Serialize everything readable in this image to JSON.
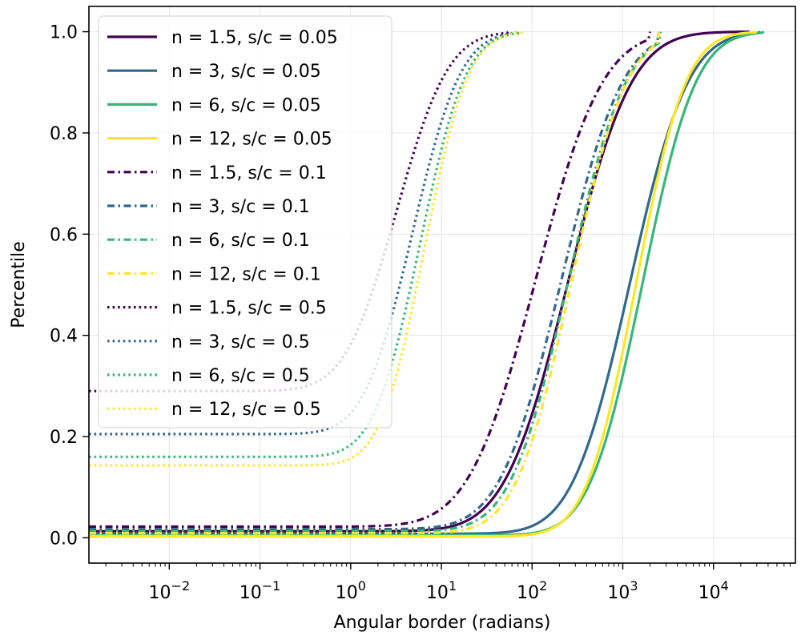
{
  "chart_data": {
    "type": "line",
    "title": "",
    "xlabel": "Angular border (radians)",
    "ylabel": "Percentile",
    "xscale": "log",
    "xlim": [
      0.0013,
      80000
    ],
    "ylim": [
      -0.05,
      1.05
    ],
    "grid": true,
    "legend_position": "top-left",
    "x_ticks": [
      {
        "value": 0.01,
        "base": "10",
        "exp": "−2"
      },
      {
        "value": 0.1,
        "base": "10",
        "exp": "−1"
      },
      {
        "value": 1,
        "base": "10",
        "exp": "0"
      },
      {
        "value": 10,
        "base": "10",
        "exp": "1"
      },
      {
        "value": 100,
        "base": "10",
        "exp": "2"
      },
      {
        "value": 1000,
        "base": "10",
        "exp": "3"
      },
      {
        "value": 10000,
        "base": "10",
        "exp": "4"
      }
    ],
    "y_ticks": [
      {
        "value": 0.0,
        "label": "0.0"
      },
      {
        "value": 0.2,
        "label": "0.2"
      },
      {
        "value": 0.4,
        "label": "0.4"
      },
      {
        "value": 0.6,
        "label": "0.6"
      },
      {
        "value": 0.8,
        "label": "0.8"
      },
      {
        "value": 1.0,
        "label": "1.0"
      }
    ],
    "series": [
      {
        "name": "n = 1.5, s/c = 0.05",
        "color": "#440154",
        "dash": "solid",
        "floor": 0.013,
        "median": 250,
        "width": 0.55,
        "xmax": 25000
      },
      {
        "name": "n = 3, s/c = 0.05",
        "color": "#31688e",
        "dash": "solid",
        "floor": 0.008,
        "median": 1200,
        "width": 0.5,
        "xmax": 33000
      },
      {
        "name": "n = 6, s/c = 0.05",
        "color": "#35b779",
        "dash": "solid",
        "floor": 0.005,
        "median": 1650,
        "width": 0.46,
        "xmax": 36000
      },
      {
        "name": "n = 12, s/c = 0.05",
        "color": "#fde725",
        "dash": "solid",
        "floor": 0.003,
        "median": 1400,
        "width": 0.43,
        "xmax": 30000
      },
      {
        "name": "n = 1.5, s/c = 0.1",
        "color": "#440154",
        "dash": "dashdot",
        "floor": 0.022,
        "median": 110,
        "width": 0.58,
        "xmax": 2000
      },
      {
        "name": "n = 3, s/c = 0.1",
        "color": "#31688e",
        "dash": "dashdot",
        "floor": 0.017,
        "median": 210,
        "width": 0.53,
        "xmax": 2500
      },
      {
        "name": "n = 6, s/c = 0.1",
        "color": "#35b779",
        "dash": "dashdot",
        "floor": 0.013,
        "median": 250,
        "width": 0.5,
        "xmax": 2600
      },
      {
        "name": "n = 12, s/c = 0.1",
        "color": "#fde725",
        "dash": "dashdot",
        "floor": 0.009,
        "median": 270,
        "width": 0.48,
        "xmax": 2500
      },
      {
        "name": "n = 1.5, s/c = 0.5",
        "color": "#440154",
        "dash": "dotted",
        "floor": 0.29,
        "median": 3.2,
        "width": 0.45,
        "xmax": 55
      },
      {
        "name": "n = 3, s/c = 0.5",
        "color": "#31688e",
        "dash": "dotted",
        "floor": 0.205,
        "median": 4.8,
        "width": 0.42,
        "xmax": 70
      },
      {
        "name": "n = 6, s/c = 0.5",
        "color": "#35b779",
        "dash": "dotted",
        "floor": 0.16,
        "median": 5.8,
        "width": 0.4,
        "xmax": 75
      },
      {
        "name": "n = 12, s/c = 0.5",
        "color": "#fde725",
        "dash": "dotted",
        "floor": 0.143,
        "median": 6.5,
        "width": 0.38,
        "xmax": 80
      }
    ]
  }
}
